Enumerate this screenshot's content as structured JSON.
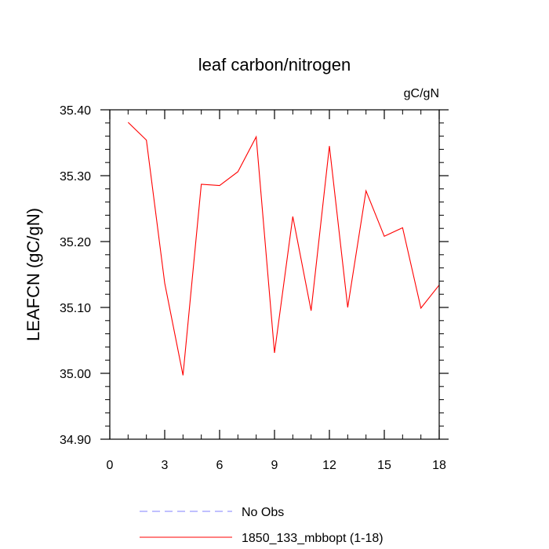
{
  "chart_data": {
    "type": "line",
    "title": "leaf carbon/nitrogen",
    "units": "gC/gN",
    "xlabel": "",
    "ylabel": "LEAFCN  (gC/gN)",
    "xlim": [
      0,
      18
    ],
    "ylim": [
      34.9,
      35.4
    ],
    "xticks": [
      0,
      3,
      6,
      9,
      12,
      15,
      18
    ],
    "xtick_labels": [
      "0",
      "3",
      "6",
      "9",
      "12",
      "15",
      "18"
    ],
    "yticks": [
      34.9,
      35.0,
      35.1,
      35.2,
      35.3,
      35.4
    ],
    "ytick_labels": [
      "34.90",
      "35.00",
      "35.10",
      "35.20",
      "35.30",
      "35.40"
    ],
    "grid": false,
    "legend_placement": "bottom",
    "series": [
      {
        "name": "No Obs",
        "color": "#8080ff",
        "style": "dashed",
        "x": [],
        "values": []
      },
      {
        "name": "1850_133_mbbopt (1-18)",
        "color": "#ff0000",
        "style": "solid",
        "x": [
          1,
          2,
          3,
          4,
          5,
          6,
          7,
          8,
          9,
          10,
          11,
          12,
          13,
          14,
          15,
          16,
          17,
          18
        ],
        "values": [
          35.381,
          35.354,
          35.137,
          34.997,
          35.287,
          35.285,
          35.306,
          35.359,
          35.031,
          35.238,
          35.095,
          35.345,
          35.1,
          35.277,
          35.208,
          35.221,
          35.099,
          35.134
        ]
      }
    ]
  }
}
